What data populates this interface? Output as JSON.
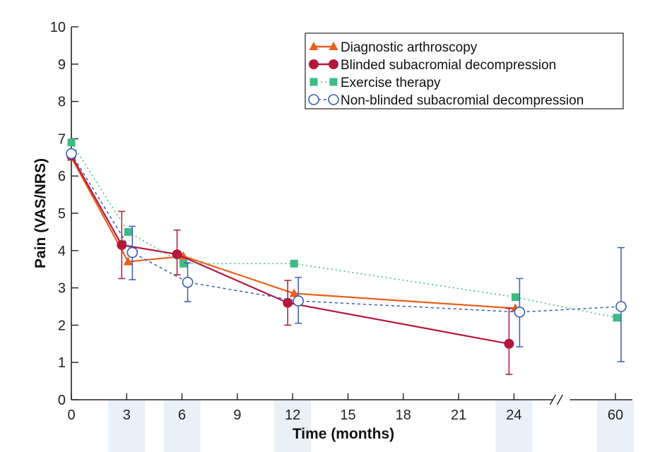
{
  "chart_data": {
    "type": "line",
    "ylabel": "Pain (VAS/NRS)",
    "xlabel": "Time (months)",
    "ylim": [
      0,
      10
    ],
    "y_ticks": [
      0,
      1,
      2,
      3,
      4,
      5,
      6,
      7,
      8,
      9,
      10
    ],
    "x_ticks": [
      "0",
      "3",
      "6",
      "9",
      "12",
      "15",
      "18",
      "21",
      "24",
      "60"
    ],
    "x_tick_values": [
      0,
      3,
      6,
      9,
      12,
      15,
      18,
      21,
      24,
      60
    ],
    "axis_break_between": [
      24,
      60
    ],
    "shaded_timepoints": [
      3,
      6,
      12,
      24,
      60
    ],
    "legend_position": "top-right",
    "series": [
      {
        "name": "Diagnostic arthroscopy",
        "color": "#e8601c",
        "marker": "triangle",
        "line_style": "solid",
        "points": [
          {
            "x": 0,
            "y": 6.5
          },
          {
            "x": 3,
            "y": 3.7
          },
          {
            "x": 6,
            "y": 3.85
          },
          {
            "x": 12,
            "y": 2.85
          },
          {
            "x": 24,
            "y": 2.45
          }
        ]
      },
      {
        "name": "Blinded subacromial decompression",
        "color": "#b5173b",
        "marker": "circle-filled",
        "line_style": "solid",
        "points": [
          {
            "x": 0,
            "y": 6.55
          },
          {
            "x": 3,
            "y": 4.15,
            "err_low": 3.25,
            "err_high": 5.05
          },
          {
            "x": 6,
            "y": 3.9,
            "err_low": 3.35,
            "err_high": 4.55
          },
          {
            "x": 12,
            "y": 2.6,
            "err_low": 2.0,
            "err_high": 3.2
          },
          {
            "x": 24,
            "y": 1.5,
            "err_low": 0.68,
            "err_high": 2.45
          }
        ]
      },
      {
        "name": "Exercise therapy",
        "color": "#3dbb84",
        "marker": "square",
        "line_style": "dotted",
        "points": [
          {
            "x": 0,
            "y": 6.9
          },
          {
            "x": 3,
            "y": 4.5
          },
          {
            "x": 6,
            "y": 3.65
          },
          {
            "x": 12,
            "y": 3.65
          },
          {
            "x": 24,
            "y": 2.75
          },
          {
            "x": 60,
            "y": 2.2
          }
        ]
      },
      {
        "name": "Non-blinded subacromial decompression",
        "color": "#3a5db4",
        "marker": "circle-open",
        "line_style": "dashed",
        "points": [
          {
            "x": 0,
            "y": 6.6
          },
          {
            "x": 3,
            "y": 3.95,
            "err_low": 3.22,
            "err_high": 4.65
          },
          {
            "x": 6,
            "y": 3.15,
            "err_low": 2.63,
            "err_high": 3.67
          },
          {
            "x": 12,
            "y": 2.65,
            "err_low": 2.05,
            "err_high": 3.28
          },
          {
            "x": 24,
            "y": 2.35,
            "err_low": 1.42,
            "err_high": 3.25
          },
          {
            "x": 60,
            "y": 2.5,
            "err_low": 1.02,
            "err_high": 4.08
          }
        ]
      }
    ]
  }
}
